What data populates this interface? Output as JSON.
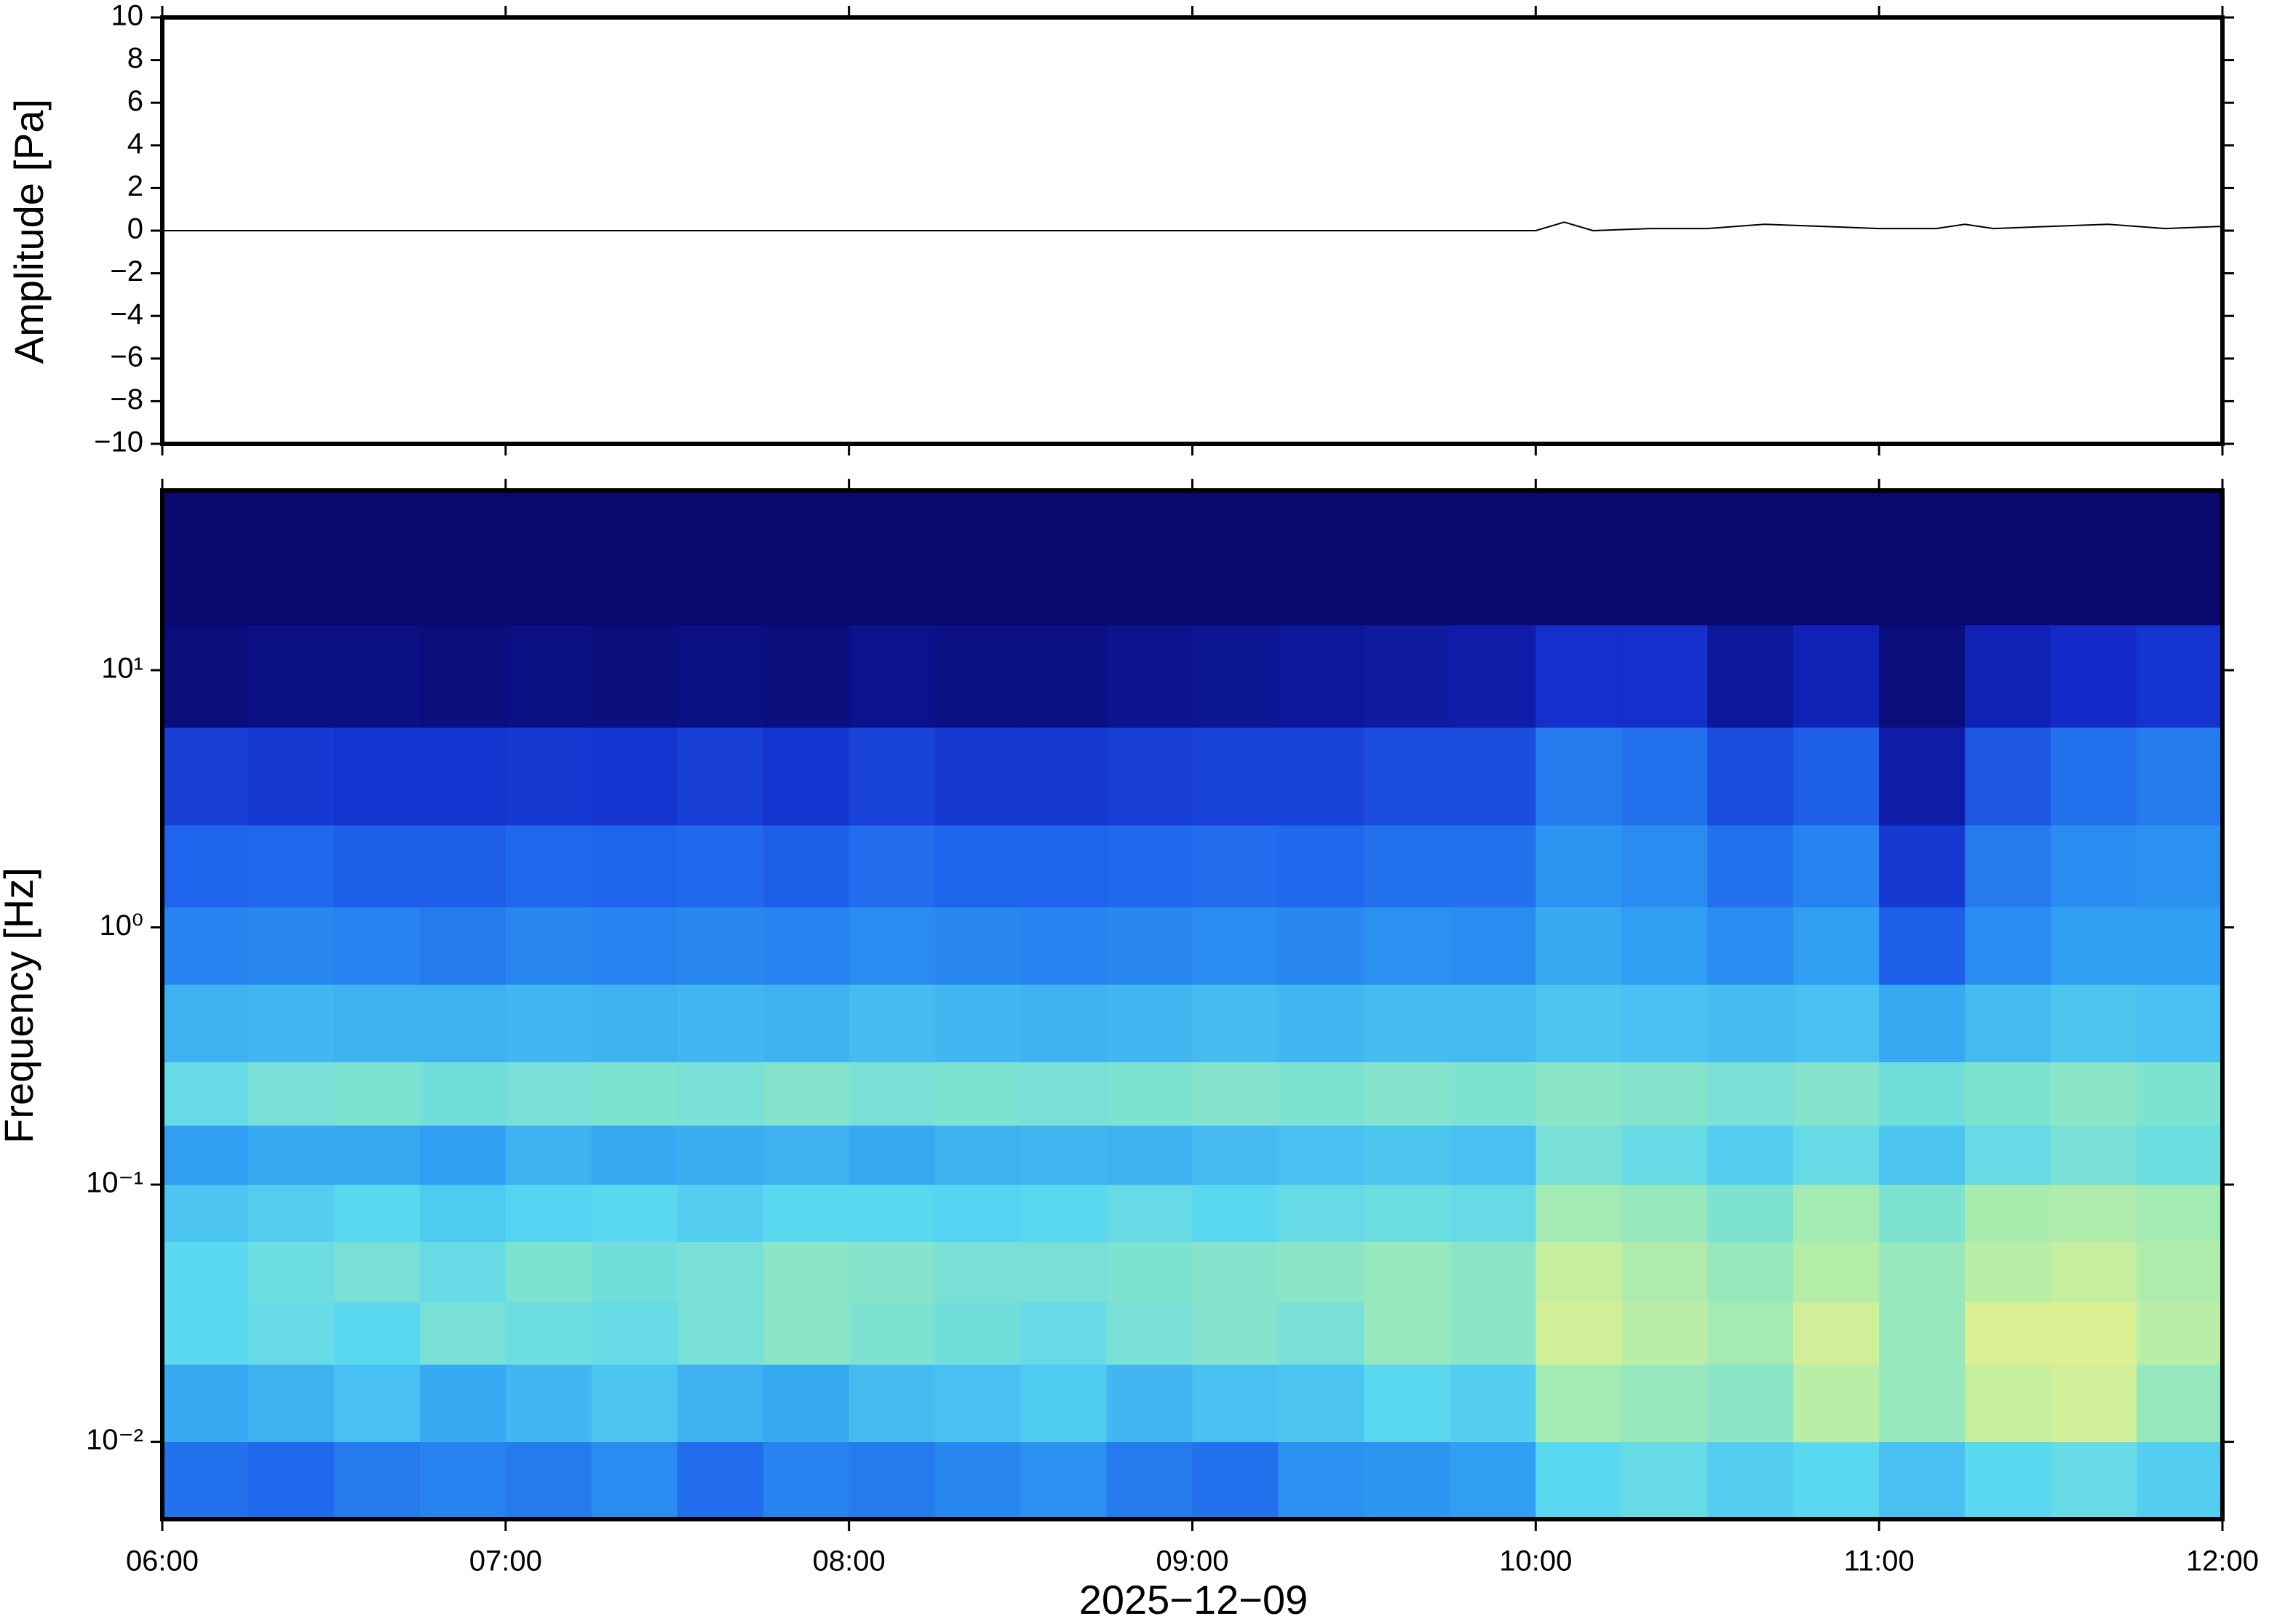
{
  "chart_data": [
    {
      "type": "line",
      "ylabel": "Amplitude [Pa]",
      "x": [
        6,
        6.1667,
        6.3333,
        6.5,
        6.6667,
        6.8333,
        7,
        7.1667,
        7.3333,
        7.5,
        7.6667,
        7.8333,
        8,
        8.1667,
        8.3333,
        8.5,
        8.6667,
        8.8333,
        9,
        9.1667,
        9.3333,
        9.5,
        9.6667,
        9.8333,
        10,
        10.0833,
        10.1667,
        10.3333,
        10.5,
        10.6667,
        10.8333,
        11,
        11.1667,
        11.25,
        11.3333,
        11.5,
        11.6667,
        11.8333,
        12
      ],
      "values": [
        0,
        0,
        0,
        0,
        0,
        0,
        0,
        0,
        0,
        0,
        0,
        0,
        0,
        0,
        0,
        0,
        0,
        0,
        0,
        0,
        0,
        0,
        0,
        0,
        0,
        0.4,
        0,
        0.1,
        0.1,
        0.3,
        0.2,
        0.1,
        0.1,
        0.3,
        0.1,
        0.2,
        0.3,
        0.1,
        0.2
      ],
      "color": "#000000",
      "xlim": [
        6,
        12
      ],
      "xticks": [
        6,
        7,
        8,
        9,
        10,
        11,
        12
      ],
      "ylim": [
        -10,
        10
      ],
      "yticks": [
        {
          "value": -10,
          "label": "−10"
        },
        {
          "value": -8,
          "label": "−8"
        },
        {
          "value": -6,
          "label": "−6"
        },
        {
          "value": -4,
          "label": "−4"
        },
        {
          "value": -2,
          "label": "−2"
        },
        0,
        2,
        4,
        6,
        8,
        10
      ]
    },
    {
      "type": "heatmap",
      "ylabel": "Frequency [Hz]",
      "xlabel": "2025−12−09",
      "ylog": true,
      "xlim": [
        6,
        12
      ],
      "xticks": [
        {
          "value": 6,
          "label": "06:00"
        },
        {
          "value": 7,
          "label": "07:00"
        },
        {
          "value": 8,
          "label": "08:00"
        },
        {
          "value": 9,
          "label": "09:00"
        },
        {
          "value": 10,
          "label": "10:00"
        },
        {
          "value": 11,
          "label": "11:00"
        },
        {
          "value": 12,
          "label": "12:00"
        }
      ],
      "ylim": [
        0.005,
        50
      ],
      "yticks": [
        {
          "value": 0.01,
          "label": "10⁻²"
        },
        {
          "value": 0.1,
          "label": "10⁻¹"
        },
        {
          "value": 1,
          "label": "10⁰"
        },
        {
          "value": 10,
          "label": "10¹"
        }
      ],
      "zlim": [
        0,
        1
      ],
      "colormap": [
        "#08086e",
        "#1228c8",
        "#1f64ec",
        "#2e9cf2",
        "#5ad8f0",
        "#a6ecb0",
        "#eef08a",
        "#f8a050",
        "#d02020"
      ],
      "x": [
        6,
        6.25,
        6.5,
        6.75,
        7,
        7.25,
        7.5,
        7.75,
        8,
        8.25,
        8.5,
        8.75,
        9,
        9.25,
        9.5,
        9.75,
        10,
        10.25,
        10.5,
        10.75,
        11,
        11.25,
        11.5,
        11.75,
        12
      ],
      "y": [
        0.005,
        0.01,
        0.02,
        0.035,
        0.06,
        0.1,
        0.17,
        0.3,
        0.6,
        1.2,
        2.5,
        6,
        15,
        50
      ],
      "z": [
        [
          0.28,
          0.26,
          0.3,
          0.32,
          0.3,
          0.34,
          0.27,
          0.32,
          0.3,
          0.33,
          0.35,
          0.3,
          0.28,
          0.35,
          0.36,
          0.38,
          0.5,
          0.52,
          0.48,
          0.5,
          0.45,
          0.5,
          0.52,
          0.48
        ],
        [
          0.4,
          0.42,
          0.45,
          0.4,
          0.43,
          0.46,
          0.42,
          0.4,
          0.44,
          0.45,
          0.47,
          0.43,
          0.45,
          0.46,
          0.5,
          0.48,
          0.62,
          0.6,
          0.58,
          0.66,
          0.6,
          0.68,
          0.7,
          0.6
        ],
        [
          0.5,
          0.52,
          0.5,
          0.55,
          0.53,
          0.52,
          0.55,
          0.58,
          0.56,
          0.54,
          0.52,
          0.55,
          0.57,
          0.55,
          0.6,
          0.58,
          0.7,
          0.66,
          0.62,
          0.7,
          0.6,
          0.72,
          0.72,
          0.66
        ],
        [
          0.5,
          0.53,
          0.55,
          0.52,
          0.56,
          0.54,
          0.55,
          0.58,
          0.57,
          0.55,
          0.55,
          0.56,
          0.57,
          0.58,
          0.6,
          0.58,
          0.68,
          0.64,
          0.6,
          0.65,
          0.6,
          0.66,
          0.68,
          0.64
        ],
        [
          0.46,
          0.48,
          0.5,
          0.47,
          0.49,
          0.5,
          0.48,
          0.5,
          0.5,
          0.49,
          0.5,
          0.52,
          0.5,
          0.52,
          0.53,
          0.52,
          0.62,
          0.6,
          0.56,
          0.62,
          0.56,
          0.63,
          0.64,
          0.62
        ],
        [
          0.38,
          0.4,
          0.4,
          0.38,
          0.42,
          0.4,
          0.41,
          0.42,
          0.4,
          0.42,
          0.43,
          0.42,
          0.44,
          0.45,
          0.46,
          0.45,
          0.55,
          0.52,
          0.48,
          0.52,
          0.46,
          0.52,
          0.55,
          0.53
        ],
        [
          0.52,
          0.55,
          0.56,
          0.54,
          0.55,
          0.56,
          0.55,
          0.57,
          0.55,
          0.56,
          0.55,
          0.56,
          0.57,
          0.56,
          0.57,
          0.56,
          0.58,
          0.57,
          0.55,
          0.57,
          0.54,
          0.56,
          0.58,
          0.56
        ],
        [
          0.42,
          0.43,
          0.42,
          0.42,
          0.43,
          0.42,
          0.43,
          0.42,
          0.44,
          0.43,
          0.42,
          0.43,
          0.44,
          0.43,
          0.44,
          0.44,
          0.46,
          0.45,
          0.44,
          0.45,
          0.4,
          0.44,
          0.46,
          0.45
        ],
        [
          0.32,
          0.33,
          0.32,
          0.3,
          0.33,
          0.32,
          0.33,
          0.32,
          0.34,
          0.33,
          0.32,
          0.33,
          0.34,
          0.33,
          0.35,
          0.34,
          0.4,
          0.38,
          0.34,
          0.38,
          0.24,
          0.34,
          0.38,
          0.38
        ],
        [
          0.25,
          0.26,
          0.24,
          0.24,
          0.26,
          0.25,
          0.26,
          0.24,
          0.27,
          0.25,
          0.25,
          0.26,
          0.27,
          0.26,
          0.28,
          0.28,
          0.36,
          0.34,
          0.28,
          0.32,
          0.16,
          0.3,
          0.34,
          0.35
        ],
        [
          0.17,
          0.16,
          0.15,
          0.15,
          0.16,
          0.15,
          0.17,
          0.15,
          0.18,
          0.16,
          0.16,
          0.17,
          0.18,
          0.18,
          0.2,
          0.2,
          0.3,
          0.28,
          0.2,
          0.24,
          0.08,
          0.22,
          0.28,
          0.3
        ],
        [
          0.02,
          0.03,
          0.03,
          0.02,
          0.03,
          0.02,
          0.03,
          0.02,
          0.04,
          0.03,
          0.03,
          0.04,
          0.05,
          0.06,
          0.07,
          0.08,
          0.14,
          0.14,
          0.06,
          0.1,
          0.02,
          0.1,
          0.13,
          0.15
        ],
        [
          0,
          0,
          0,
          0,
          0,
          0,
          0,
          0,
          0,
          0,
          0,
          0,
          0,
          0,
          0,
          0,
          0,
          0,
          0,
          0,
          0,
          0,
          0,
          0
        ]
      ]
    }
  ]
}
